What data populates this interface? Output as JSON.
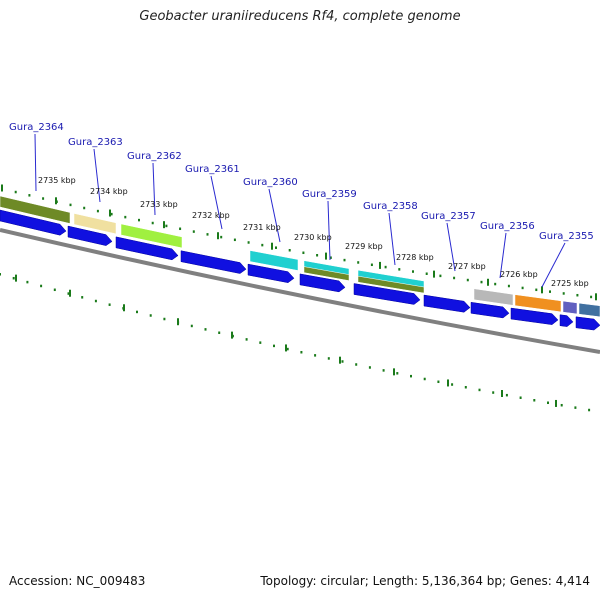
{
  "title": "Geobacter uraniireducens Rf4, complete genome",
  "footer": {
    "accession": "Accession: NC_009483",
    "summary": "Topology: circular; Length: 5,136,364 bp; Genes: 4,414"
  },
  "colors": {
    "ticks": "#1a7a1a",
    "backbone": "#808080",
    "cds_arrow": "#1010e0",
    "label": "#1a1ab0",
    "leader_line": "#2a2ad0"
  },
  "gene_labels": [
    "Gura_2364",
    "Gura_2363",
    "Gura_2362",
    "Gura_2361",
    "Gura_2360",
    "Gura_2359",
    "Gura_2358",
    "Gura_2357",
    "Gura_2356",
    "Gura_2355"
  ],
  "kbp_labels": [
    "2735 kbp",
    "2734 kbp",
    "2733 kbp",
    "2732 kbp",
    "2731 kbp",
    "2730 kbp",
    "2729 kbp",
    "2728 kbp",
    "2727 kbp",
    "2726 kbp",
    "2725 kbp"
  ],
  "feature_colors": [
    "#6e8a26",
    "#f0e0a0",
    "#a0f040",
    "#20d0d0",
    "#20d0d0",
    "#6e8a26",
    "#20d0d0",
    "#6e8a26",
    "#b8b8b8",
    "#f09020",
    "#6060c0",
    "#4070a0"
  ]
}
